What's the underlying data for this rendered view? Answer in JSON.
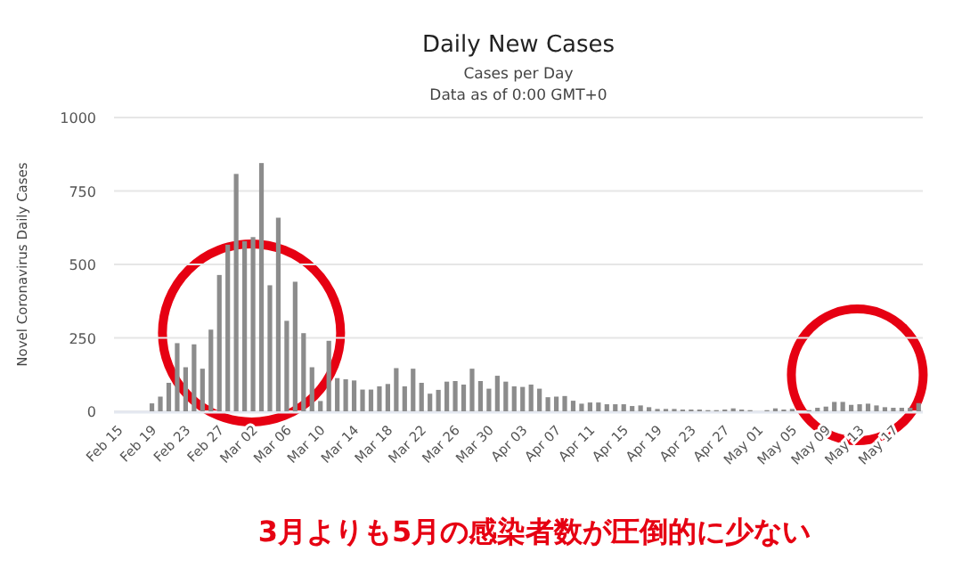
{
  "chart_data": {
    "type": "bar",
    "title": "Daily New Cases",
    "subtitle": "Cases per Day",
    "annotations": [
      "Data as of 0:00 GMT+0",
      "3月よりも5月の感染者数が圧倒的に少ない"
    ],
    "ylabel": "Novel Coronavirus Daily Cases",
    "categories": [
      "Feb 15",
      null,
      null,
      null,
      "Feb 19",
      null,
      null,
      null,
      "Feb 23",
      null,
      null,
      null,
      "Feb 27",
      null,
      null,
      null,
      "Mar 02",
      null,
      null,
      null,
      "Mar 06",
      null,
      null,
      null,
      "Mar 10",
      null,
      null,
      null,
      "Mar 14",
      null,
      null,
      null,
      "Mar 18",
      null,
      null,
      null,
      "Mar 22",
      null,
      null,
      null,
      "Mar 26",
      null,
      null,
      null,
      "Mar 30",
      null,
      null,
      null,
      "Apr 03",
      null,
      null,
      null,
      "Apr 07",
      null,
      null,
      null,
      "Apr 11",
      null,
      null,
      null,
      "Apr 15",
      null,
      null,
      null,
      "Apr 19",
      null,
      null,
      null,
      "Apr 23",
      null,
      null,
      null,
      "Apr 27",
      null,
      null,
      null,
      "May 01",
      null,
      null,
      null,
      "May 05",
      null,
      null,
      null,
      "May 09",
      null,
      null,
      null,
      "May 13",
      null,
      null,
      null,
      "May 17",
      null,
      null,
      null
    ],
    "values": [
      0,
      0,
      0,
      0,
      27,
      50,
      97,
      232,
      150,
      228,
      145,
      278,
      464,
      567,
      808,
      579,
      593,
      845,
      429,
      659,
      308,
      441,
      266,
      150,
      35,
      240,
      113,
      109,
      105,
      74,
      74,
      85,
      93,
      147,
      85,
      145,
      97,
      60,
      73,
      101,
      103,
      91,
      145,
      103,
      77,
      121,
      101,
      85,
      83,
      91,
      77,
      48,
      50,
      52,
      36,
      26,
      30,
      30,
      24,
      24,
      24,
      18,
      20,
      14,
      8,
      8,
      8,
      6,
      6,
      6,
      4,
      4,
      6,
      10,
      6,
      4,
      null,
      4,
      10,
      6,
      8,
      null,
      4,
      12,
      16,
      32,
      32,
      22,
      24,
      26,
      20,
      14,
      12,
      12,
      12,
      28
    ],
    "color": "#8c8c8c",
    "ylim": [
      0,
      1000
    ],
    "yticks": [
      0,
      250,
      500,
      750,
      1000
    ],
    "grid": "y"
  }
}
